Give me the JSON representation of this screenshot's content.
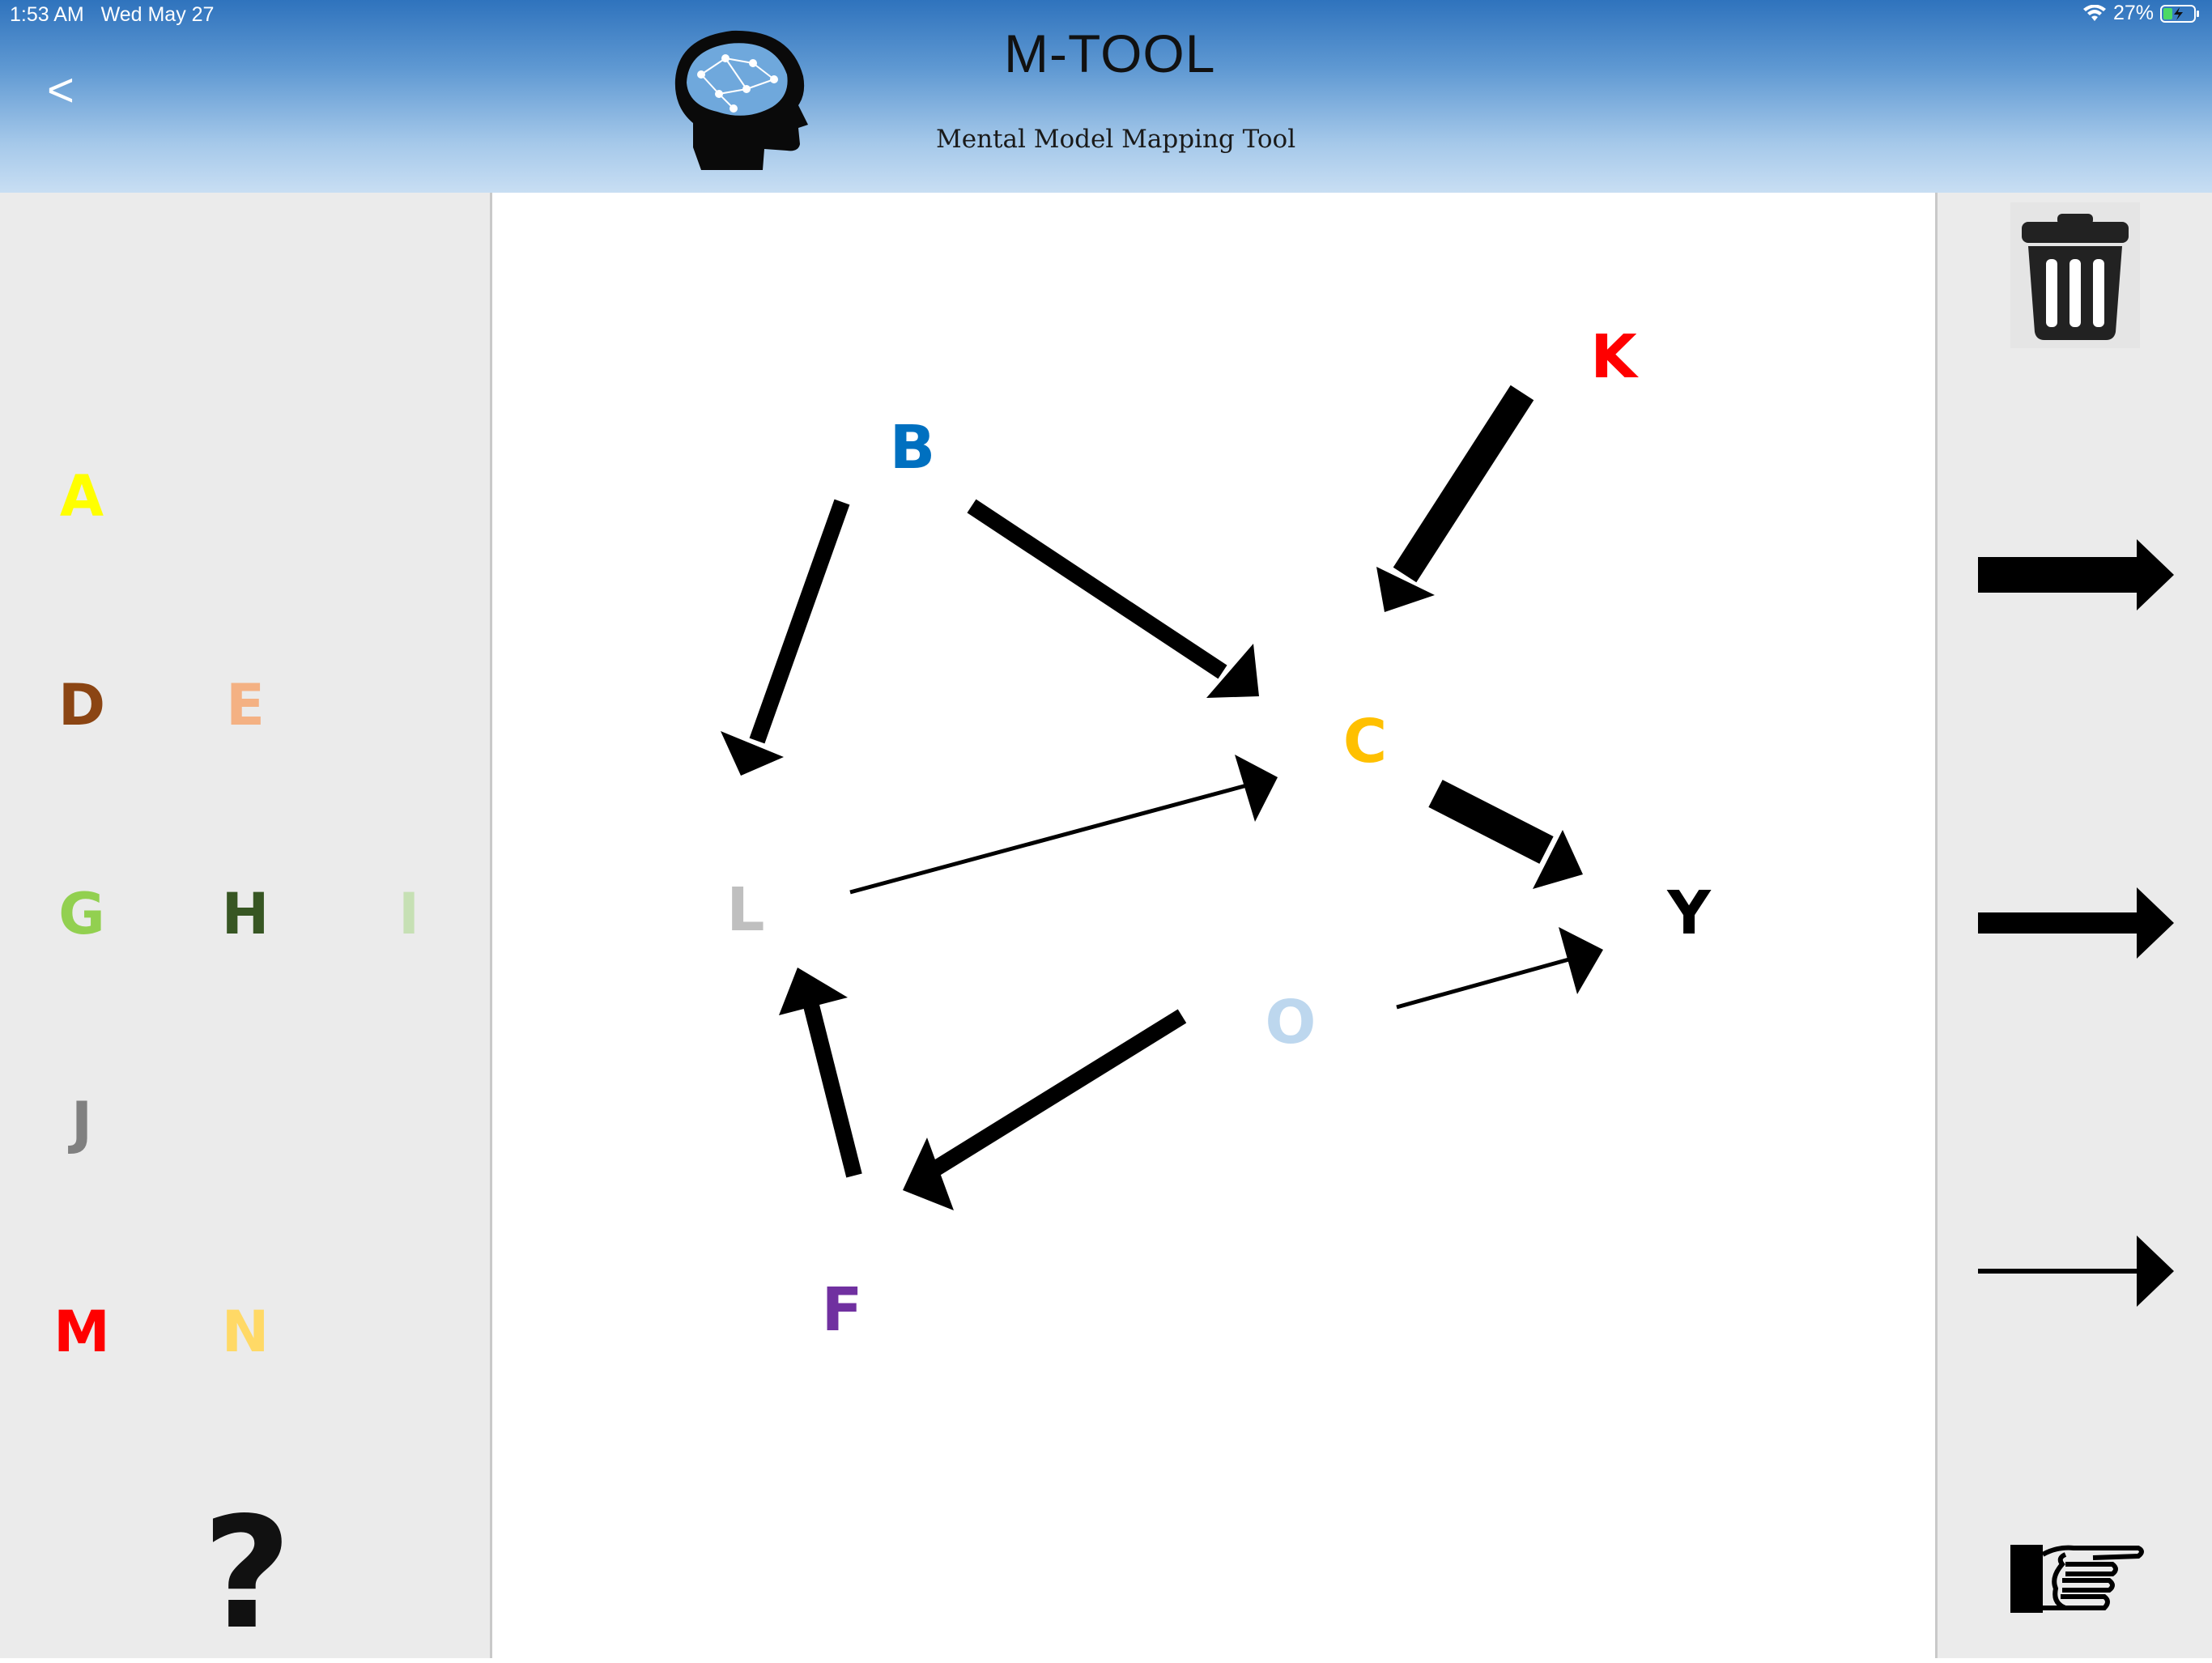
{
  "status_bar": {
    "time": "1:53 AM",
    "date": "Wed May 27",
    "battery": "27%"
  },
  "header": {
    "back_label": "<",
    "title": "M-TOOL",
    "subtitle": "Mental Model Mapping Tool"
  },
  "palette": {
    "items": [
      {
        "label": "A",
        "color": "#ffff00"
      },
      {
        "label": "D",
        "color": "#8b4513"
      },
      {
        "label": "E",
        "color": "#f4b183"
      },
      {
        "label": "G",
        "color": "#92d050"
      },
      {
        "label": "H",
        "color": "#375623"
      },
      {
        "label": "I",
        "color": "#c6e0b4"
      },
      {
        "label": "J",
        "color": "#808080"
      },
      {
        "label": "M",
        "color": "#ff0000"
      },
      {
        "label": "N",
        "color": "#ffd966"
      }
    ],
    "help_label": "?"
  },
  "map": {
    "nodes": [
      {
        "label": "B",
        "color": "#0070c0"
      },
      {
        "label": "K",
        "color": "#ff0000"
      },
      {
        "label": "C",
        "color": "#ffc000"
      },
      {
        "label": "L",
        "color": "#bfbfbf"
      },
      {
        "label": "Y",
        "color": "#000000"
      },
      {
        "label": "O",
        "color": "#bdd7ee"
      },
      {
        "label": "F",
        "color": "#7030a0"
      }
    ],
    "arrows": [
      {
        "from": "B",
        "to": "L",
        "strength": "medium"
      },
      {
        "from": "B",
        "to": "C",
        "strength": "medium"
      },
      {
        "from": "K",
        "to": "C",
        "strength": "strong"
      },
      {
        "from": "L",
        "to": "C",
        "strength": "weak"
      },
      {
        "from": "C",
        "to": "Y",
        "strength": "strong"
      },
      {
        "from": "O",
        "to": "Y",
        "strength": "weak"
      },
      {
        "from": "O",
        "to": "F",
        "strength": "medium"
      },
      {
        "from": "F",
        "to": "L",
        "strength": "medium"
      }
    ]
  },
  "toolbar": {
    "tools": [
      "trash-icon",
      "strong-arrow-icon",
      "medium-arrow-icon",
      "weak-arrow-icon",
      "pointer-hand-icon"
    ]
  }
}
